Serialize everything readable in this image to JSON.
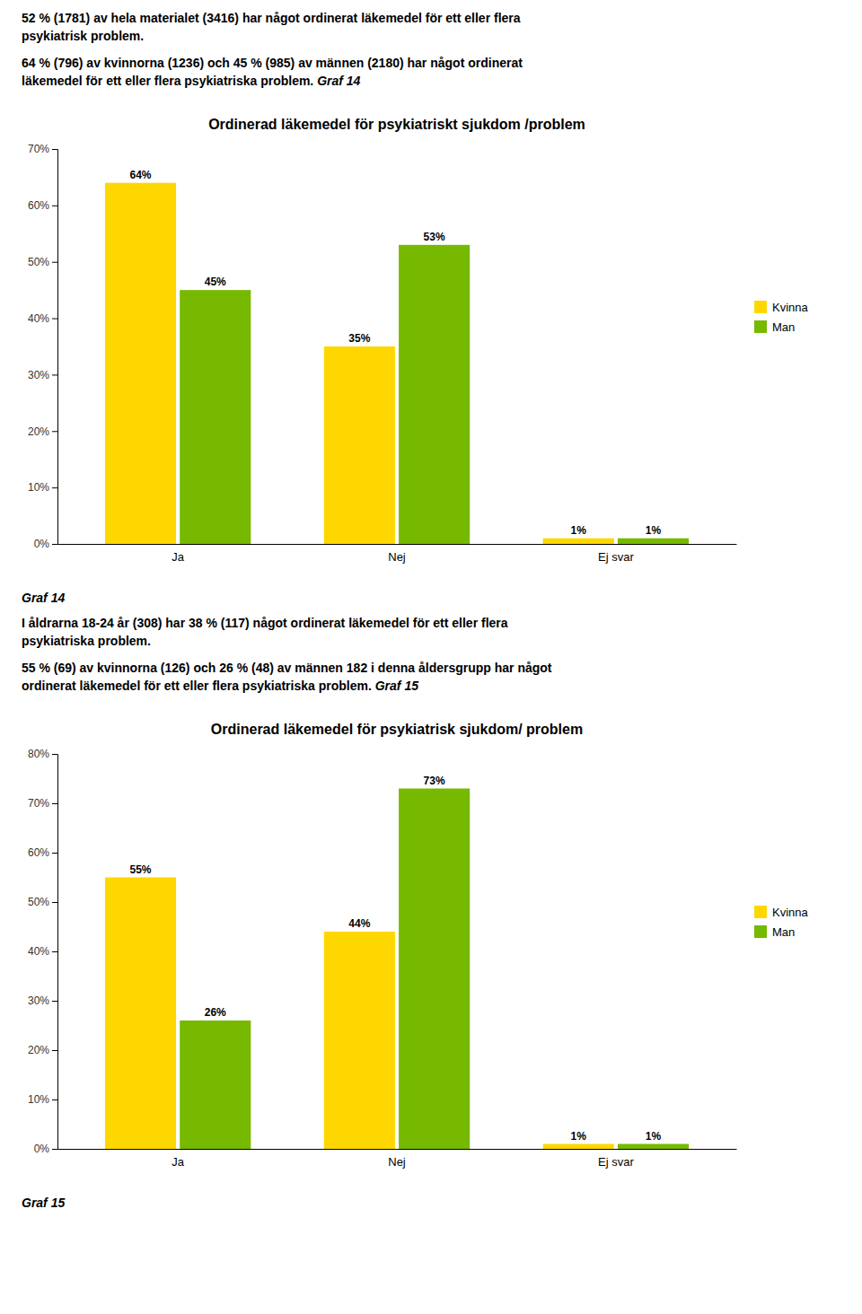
{
  "page_text": [
    {
      "paragraphs": [
        {
          "lines": [
            "52 % (1781) av hela materialet (3416) har något ordinerat läkemedel för ett eller flera",
            "psykiatrisk problem."
          ]
        },
        {
          "lines": [
            "64 % (796) av kvinnorna (1236) och 45 % (985) av männen (2180) har något ordinerat",
            "läkemedel för ett eller flera psykiatriska problem."
          ],
          "ref": "Graf 14"
        }
      ]
    },
    {
      "label": "Graf 14",
      "paragraphs": [
        {
          "lines": [
            "I åldrarna 18-24 år (308) har 38 % (117) något ordinerat läkemedel för ett eller flera",
            "psykiatriska problem."
          ]
        },
        {
          "lines": [
            "55 % (69) av kvinnorna (126) och 26 % (48) av männen 182 i denna åldersgrupp har något",
            "ordinerat läkemedel för ett eller flera psykiatriska problem."
          ],
          "ref": "Graf 15"
        }
      ]
    },
    {
      "label": "Graf 15"
    }
  ],
  "chart_data": [
    {
      "type": "bar",
      "title": "Ordinerad läkemedel  för psykiatriskt sjukdom /problem",
      "categories": [
        "Ja",
        "Nej",
        "Ej svar"
      ],
      "series": [
        {
          "name": "Kvinna",
          "color": "#FFD700",
          "values": [
            64,
            35,
            1
          ],
          "value_labels": [
            "64%",
            "35%",
            "1%"
          ]
        },
        {
          "name": "Man",
          "color": "#76B900",
          "values": [
            45,
            53,
            1
          ],
          "value_labels": [
            "45%",
            "53%",
            "1%"
          ]
        }
      ],
      "ylim": [
        0,
        70
      ],
      "yticks": [
        {
          "value": 0,
          "label": "0%"
        },
        {
          "value": 10,
          "label": "10%"
        },
        {
          "value": 20,
          "label": "20%"
        },
        {
          "value": 30,
          "label": "30%"
        },
        {
          "value": 40,
          "label": "40%"
        },
        {
          "value": 50,
          "label": "50%"
        },
        {
          "value": 60,
          "label": "60%"
        },
        {
          "value": 70,
          "label": "70%"
        }
      ],
      "data_labels": true,
      "grid": false,
      "legend": "right"
    },
    {
      "type": "bar",
      "title": "Ordinerad läkemedel för psykiatrisk sjukdom/ problem",
      "categories": [
        "Ja",
        "Nej",
        "Ej svar"
      ],
      "series": [
        {
          "name": "Kvinna",
          "color": "#FFD700",
          "values": [
            55,
            44,
            1
          ],
          "value_labels": [
            "55%",
            "44%",
            "1%"
          ]
        },
        {
          "name": "Man",
          "color": "#76B900",
          "values": [
            26,
            73,
            1
          ],
          "value_labels": [
            "26%",
            "73%",
            "1%"
          ]
        }
      ],
      "ylim": [
        0,
        80
      ],
      "yticks": [
        {
          "value": 0,
          "label": "0%"
        },
        {
          "value": 10,
          "label": "10%"
        },
        {
          "value": 20,
          "label": "20%"
        },
        {
          "value": 30,
          "label": "30%"
        },
        {
          "value": 40,
          "label": "40%"
        },
        {
          "value": 50,
          "label": "50%"
        },
        {
          "value": 60,
          "label": "60%"
        },
        {
          "value": 70,
          "label": "70%"
        },
        {
          "value": 80,
          "label": "80%"
        }
      ],
      "data_labels": true,
      "grid": false,
      "legend": "right"
    }
  ]
}
